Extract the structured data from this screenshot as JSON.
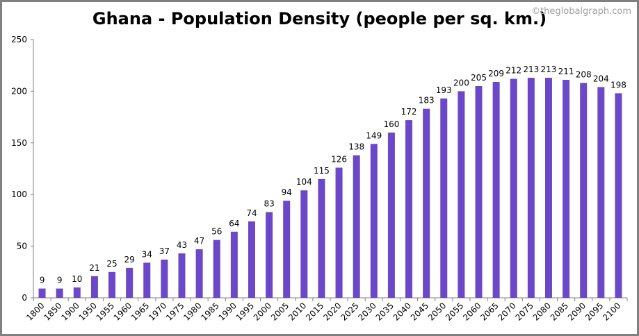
{
  "chart_data": {
    "type": "bar",
    "title": "Ghana - Population Density (people per sq. km.)",
    "watermark": "©theglobalgraph.com",
    "categories": [
      "1800",
      "1850",
      "1900",
      "1950",
      "1955",
      "1960",
      "1965",
      "1970",
      "1975",
      "1980",
      "1985",
      "1990",
      "1995",
      "2000",
      "2005",
      "2010",
      "2015",
      "2020",
      "2025",
      "2030",
      "2035",
      "2040",
      "2045",
      "2050",
      "2055",
      "2060",
      "2065",
      "2070",
      "2075",
      "2080",
      "2085",
      "2090",
      "2095",
      "2100"
    ],
    "values": [
      9,
      9,
      10,
      21,
      25,
      29,
      34,
      37,
      43,
      47,
      56,
      64,
      74,
      83,
      94,
      104,
      115,
      126,
      138,
      149,
      160,
      172,
      183,
      193,
      200,
      205,
      209,
      212,
      213,
      213,
      211,
      208,
      204,
      198
    ],
    "ylim": [
      0,
      250
    ],
    "yticks": [
      0,
      50,
      100,
      150,
      200,
      250
    ],
    "xlabel": "",
    "ylabel": "",
    "grid": false,
    "bar_color": "#6a48c8",
    "data_labels": true
  }
}
